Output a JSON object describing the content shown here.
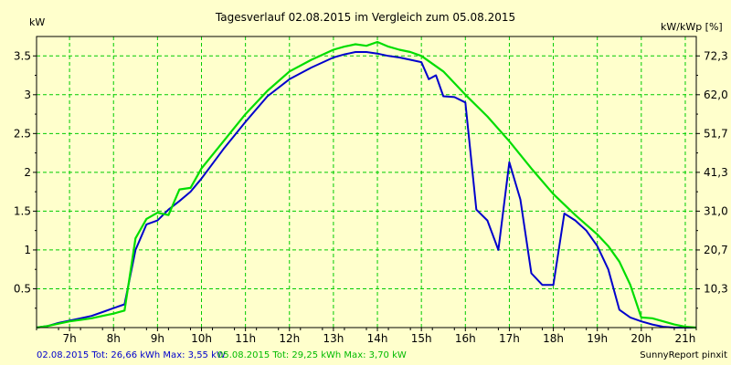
{
  "chart_data": {
    "type": "line",
    "title": "Tagesverlauf 02.08.2015 im Vergleich zum 05.08.2015",
    "ylabel": "kW",
    "ylabel_right": "kW/kWp [%]",
    "xlim": [
      6.25,
      21.25
    ],
    "ylim": [
      0,
      3.75
    ],
    "x_ticks": [
      7,
      8,
      9,
      10,
      11,
      12,
      13,
      14,
      15,
      16,
      17,
      18,
      19,
      20,
      21
    ],
    "x_tick_labels": [
      "7h",
      "8h",
      "9h",
      "10h",
      "11h",
      "12h",
      "13h",
      "14h",
      "15h",
      "16h",
      "17h",
      "18h",
      "19h",
      "20h",
      "21h"
    ],
    "y_ticks": [
      0.5,
      1,
      1.5,
      2,
      2.5,
      3,
      3.5
    ],
    "y_tick_labels": [
      "0.5",
      "1",
      "1.5",
      "2",
      "2.5",
      "3",
      "3.5"
    ],
    "y2_ticks": [
      0.5,
      1,
      1.5,
      2,
      2.5,
      3,
      3.5
    ],
    "y2_tick_labels": [
      "10,3",
      "20,7",
      "31,0",
      "41,3",
      "51,7",
      "62,0",
      "72,3"
    ],
    "grid": true,
    "series": [
      {
        "name": "02.08.2015 Tot: 26,66 kWh Max: 3,55 kW",
        "color": "#0000cc",
        "x": [
          6.25,
          6.5,
          6.75,
          7.0,
          7.25,
          7.5,
          7.75,
          8.0,
          8.25,
          8.5,
          8.75,
          9.0,
          9.25,
          9.5,
          9.75,
          10.0,
          10.5,
          11.0,
          11.5,
          12.0,
          12.5,
          13.0,
          13.25,
          13.5,
          13.75,
          14.0,
          14.25,
          14.5,
          14.75,
          15.0,
          15.17,
          15.33,
          15.5,
          15.75,
          16.0,
          16.25,
          16.5,
          16.75,
          17.0,
          17.25,
          17.5,
          17.75,
          18.0,
          18.25,
          18.5,
          18.75,
          19.0,
          19.25,
          19.5,
          19.75,
          20.0,
          20.25,
          20.5,
          20.75,
          21.0,
          21.25
        ],
        "values": [
          0.0,
          0.02,
          0.06,
          0.09,
          0.12,
          0.15,
          0.2,
          0.25,
          0.3,
          1.0,
          1.33,
          1.38,
          1.52,
          1.63,
          1.75,
          1.92,
          2.3,
          2.65,
          2.98,
          3.2,
          3.35,
          3.48,
          3.52,
          3.55,
          3.55,
          3.53,
          3.5,
          3.48,
          3.45,
          3.42,
          3.2,
          3.25,
          2.98,
          2.97,
          2.9,
          1.52,
          1.38,
          1.0,
          2.13,
          1.65,
          0.7,
          0.55,
          0.55,
          1.47,
          1.38,
          1.25,
          1.05,
          0.75,
          0.23,
          0.13,
          0.08,
          0.04,
          0.01,
          0.0,
          0.0,
          0.0
        ]
      },
      {
        "name": "05.08.2015 Tot: 29,25 kWh Max: 3,70 kW",
        "color": "#00dd00",
        "x": [
          6.25,
          6.5,
          6.75,
          7.0,
          7.25,
          7.5,
          7.75,
          8.0,
          8.25,
          8.5,
          8.75,
          9.0,
          9.25,
          9.5,
          9.75,
          10.0,
          10.5,
          11.0,
          11.5,
          12.0,
          12.5,
          13.0,
          13.25,
          13.5,
          13.75,
          14.0,
          14.25,
          14.5,
          14.75,
          15.0,
          15.5,
          16.0,
          16.5,
          17.0,
          17.5,
          18.0,
          18.5,
          19.0,
          19.25,
          19.5,
          19.75,
          20.0,
          20.25,
          20.5,
          20.75,
          21.0,
          21.25
        ],
        "values": [
          0.0,
          0.02,
          0.05,
          0.08,
          0.1,
          0.12,
          0.15,
          0.18,
          0.22,
          1.15,
          1.4,
          1.48,
          1.45,
          1.78,
          1.8,
          2.05,
          2.4,
          2.75,
          3.05,
          3.3,
          3.45,
          3.58,
          3.62,
          3.65,
          3.63,
          3.68,
          3.62,
          3.58,
          3.55,
          3.5,
          3.3,
          3.0,
          2.72,
          2.4,
          2.05,
          1.72,
          1.45,
          1.2,
          1.05,
          0.85,
          0.55,
          0.13,
          0.12,
          0.08,
          0.04,
          0.01,
          0.0
        ]
      }
    ],
    "footer_left_1": "02.08.2015 Tot: 26,66 kWh Max: 3,55 kW",
    "footer_left_2": "05.08.2015 Tot: 29,25 kWh Max: 3,70 kW",
    "footer_right": "SunnyReport pinxit"
  }
}
